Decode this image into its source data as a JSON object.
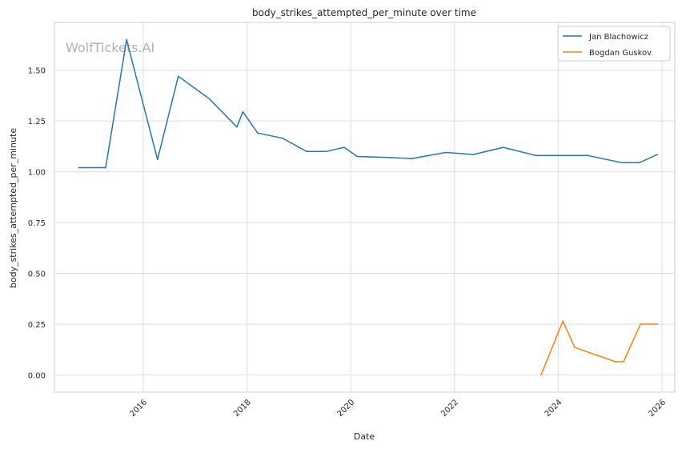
{
  "chart_data": {
    "type": "line",
    "title": "body_strikes_attempted_per_minute over time",
    "xlabel": "Date",
    "ylabel": "body_strikes_attempted_per_minute",
    "watermark": "WolfTickets.AI",
    "x_axis_type": "date",
    "xlim": [
      "2014-04-15",
      "2026-04-01"
    ],
    "ylim": [
      -0.085,
      1.735
    ],
    "x_ticks": [
      "2016",
      "2018",
      "2020",
      "2022",
      "2024",
      "2026"
    ],
    "y_ticks": [
      "0.00",
      "0.25",
      "0.50",
      "0.75",
      "1.00",
      "1.25",
      "1.50"
    ],
    "y_tick_values": [
      0,
      0.25,
      0.5,
      0.75,
      1.0,
      1.25,
      1.5
    ],
    "grid": true,
    "legend_position": "top-right",
    "series": [
      {
        "name": "Jan Blachowicz",
        "color": "#1f77b4",
        "x": [
          "2014-10-04",
          "2015-04-11",
          "2015-09-05",
          "2016-04-10",
          "2016-09-03",
          "2017-04-08",
          "2017-10-21",
          "2017-12-02",
          "2018-03-17",
          "2018-09-08",
          "2019-02-23",
          "2019-07-13",
          "2019-11-16",
          "2020-02-15",
          "2020-09-26",
          "2021-03-06",
          "2021-10-30",
          "2022-05-14",
          "2022-12-10",
          "2023-07-29",
          "2024-07-27",
          "2025-03-22",
          "2025-07-26",
          "2025-11-30"
        ],
        "y": [
          1.02,
          1.02,
          1.65,
          1.06,
          1.47,
          1.36,
          1.22,
          1.295,
          1.19,
          1.165,
          1.1,
          1.1,
          1.12,
          1.075,
          1.07,
          1.065,
          1.095,
          1.085,
          1.12,
          1.08,
          1.08,
          1.045,
          1.045,
          1.085
        ]
      },
      {
        "name": "Bogdan Guskov",
        "color": "#ff7f0e",
        "x": [
          "2023-09-02",
          "2024-02-03",
          "2024-04-27",
          "2025-02-08",
          "2025-04-05",
          "2025-08-02",
          "2025-12-01"
        ],
        "y": [
          0.0,
          0.265,
          0.135,
          0.065,
          0.065,
          0.25,
          0.25
        ]
      }
    ]
  }
}
